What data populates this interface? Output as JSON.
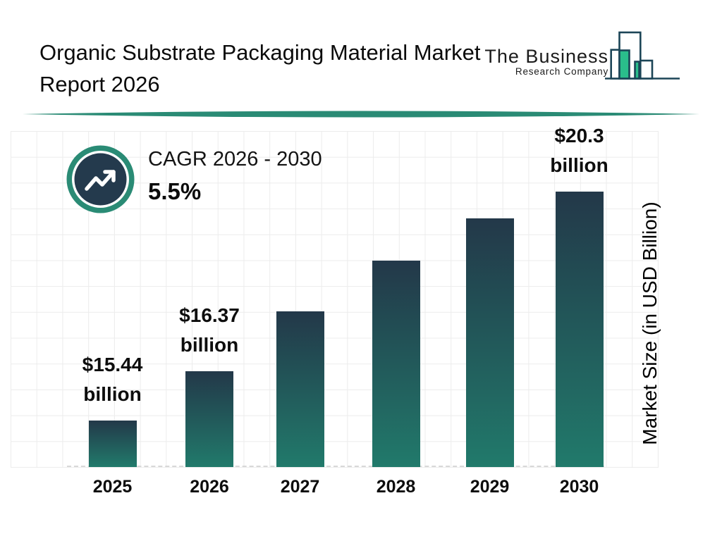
{
  "header": {
    "title": "Organic Substrate Packaging Material Market Report 2026"
  },
  "logo": {
    "name": "The Business",
    "subname": "Research Company"
  },
  "chart_data": {
    "type": "bar",
    "title": "Organic Substrate Packaging Material Market Report 2026",
    "categories": [
      "2025",
      "2026",
      "2027",
      "2028",
      "2029",
      "2030"
    ],
    "values": [
      15.44,
      16.37,
      17.8,
      18.8,
      19.7,
      20.3
    ],
    "labeled_values": {
      "2025": "$15.44 billion",
      "2026": "$16.37 billion",
      "2030": "$20.3 billion"
    },
    "bar_labels": [
      [
        "$15.44",
        "billion"
      ],
      [
        "$16.37",
        "billion"
      ],
      null,
      null,
      null,
      [
        "$20.3",
        "billion"
      ]
    ],
    "relative_heights": [
      0.169,
      0.348,
      0.565,
      0.749,
      0.903,
      1.0
    ],
    "xlabel": "",
    "ylabel": "Market Size (in USD Billion)",
    "y_axis_ticks": "none shown; bars not zero-based",
    "grid": true,
    "legend": false,
    "annotation": {
      "label": "CAGR 2026 - 2030",
      "value": "5.5%"
    },
    "colors": {
      "bar_top": "#233849",
      "bar_bottom": "#217a6b",
      "accent_teal": "#2a8b75",
      "badge_navy": "#243a4d",
      "logo_green": "#2abd8b",
      "logo_outline": "#1c4557",
      "grid_line": "#ececec",
      "baseline_dash": "#d8d8d8",
      "text": "#0d0d0d"
    }
  }
}
